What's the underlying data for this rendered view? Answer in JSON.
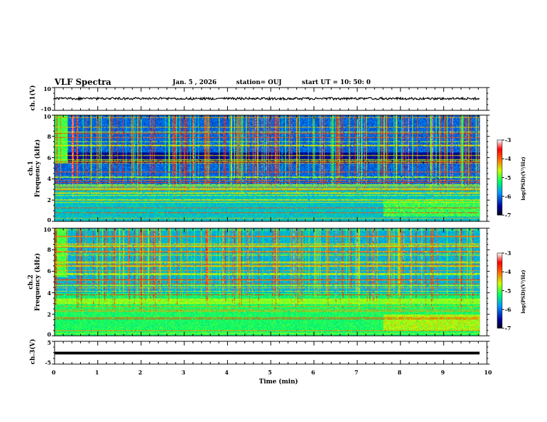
{
  "header": {
    "title": "VLF Spectra",
    "date": "Jan. 5 , 2026",
    "station": "station= OUJ",
    "start": "start  UT =   10: 50: 0"
  },
  "chart_data": [
    {
      "type": "line",
      "name": "ch1-waveform",
      "ylabel": "ch.1(V)",
      "ylim": [
        -10,
        10
      ],
      "yticks": [
        "10",
        "-10"
      ],
      "values_summary": "noisy trace around 0 V, amplitude ~1 V",
      "x_end_min": 9.83
    },
    {
      "type": "heatmap",
      "name": "ch1-spectrogram",
      "ylabel_line1": "ch.1",
      "ylabel_line2": "Frequency (kHz)",
      "ylim": [
        0,
        10
      ],
      "yticks": [
        "0",
        "2",
        "4",
        "6",
        "8",
        "10"
      ],
      "colorbar": {
        "label": "log(PSD)(V²/Hz)",
        "range": [
          -7,
          -3
        ],
        "ticks": [
          "-3",
          "-4",
          "-5",
          "-6",
          "-7"
        ]
      }
    },
    {
      "type": "heatmap",
      "name": "ch2-spectrogram",
      "ylabel_line1": "ch.2",
      "ylabel_line2": "Frequency (kHz)",
      "ylim": [
        0,
        10
      ],
      "yticks": [
        "0",
        "2",
        "4",
        "6",
        "8",
        "10"
      ],
      "colorbar": {
        "label": "log(PSD)(V²/Hz)",
        "range": [
          -7,
          -3
        ],
        "ticks": [
          "-3",
          "-4",
          "-5",
          "-6",
          "-7"
        ]
      }
    },
    {
      "type": "line",
      "name": "ch3-waveform",
      "ylabel": "ch.3(V)",
      "ylim": [
        -5,
        5
      ],
      "yticks": [
        "5",
        "-5"
      ],
      "values_summary": "flat trace at 0 V",
      "x_end_min": 9.83
    }
  ],
  "xaxis": {
    "label": "Time (min)",
    "range": [
      0,
      10
    ],
    "ticks": [
      "0",
      "1",
      "2",
      "3",
      "4",
      "5",
      "6",
      "7",
      "8",
      "9",
      "10"
    ]
  }
}
